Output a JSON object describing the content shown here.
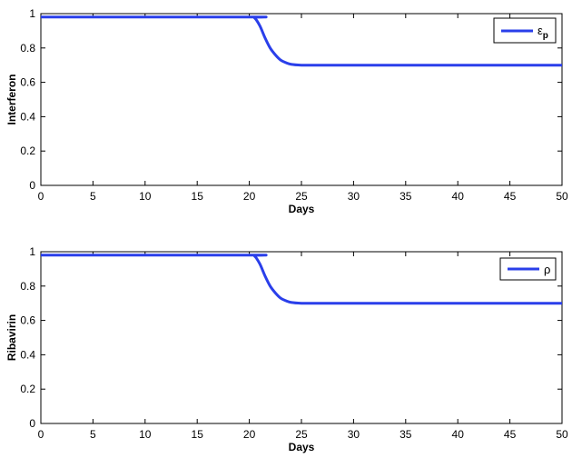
{
  "chart_data": [
    {
      "type": "line",
      "xlabel": "Days",
      "ylabel": "Interferon",
      "xlim": [
        0,
        50
      ],
      "ylim": [
        0,
        1
      ],
      "xticks": [
        "0",
        "5",
        "10",
        "15",
        "20",
        "25",
        "30",
        "35",
        "40",
        "45",
        "50"
      ],
      "yticks": [
        "0",
        "0.2",
        "0.4",
        "0.6",
        "0.8",
        "1"
      ],
      "grid": false,
      "legend_position": "top-right",
      "series": [
        {
          "name": "ε",
          "name_subscript": "p",
          "color": "#2a3fea",
          "x": [
            0,
            20,
            20.5,
            21,
            21.5,
            22,
            22.5,
            23,
            23.5,
            24,
            25,
            26,
            27,
            30,
            35,
            40,
            45,
            50
          ],
          "y": [
            0.98,
            0.98,
            0.975,
            0.93,
            0.86,
            0.8,
            0.76,
            0.73,
            0.715,
            0.705,
            0.7,
            0.7,
            0.7,
            0.7,
            0.7,
            0.7,
            0.7,
            0.7
          ]
        }
      ]
    },
    {
      "type": "line",
      "xlabel": "Days",
      "ylabel": "Ribavirin",
      "xlim": [
        0,
        50
      ],
      "ylim": [
        0,
        1
      ],
      "xticks": [
        "0",
        "5",
        "10",
        "15",
        "20",
        "25",
        "30",
        "35",
        "40",
        "45",
        "50"
      ],
      "yticks": [
        "0",
        "0.2",
        "0.4",
        "0.6",
        "0.8",
        "1"
      ],
      "grid": false,
      "legend_position": "top-right",
      "series": [
        {
          "name": "ρ",
          "name_subscript": "",
          "color": "#2a3fea",
          "x": [
            0,
            20,
            20.5,
            21,
            21.5,
            22,
            22.5,
            23,
            23.5,
            24,
            25,
            26,
            27,
            30,
            35,
            40,
            45,
            50
          ],
          "y": [
            0.98,
            0.98,
            0.975,
            0.93,
            0.86,
            0.8,
            0.76,
            0.73,
            0.715,
            0.705,
            0.7,
            0.7,
            0.7,
            0.7,
            0.7,
            0.7,
            0.7,
            0.7
          ]
        }
      ]
    }
  ]
}
